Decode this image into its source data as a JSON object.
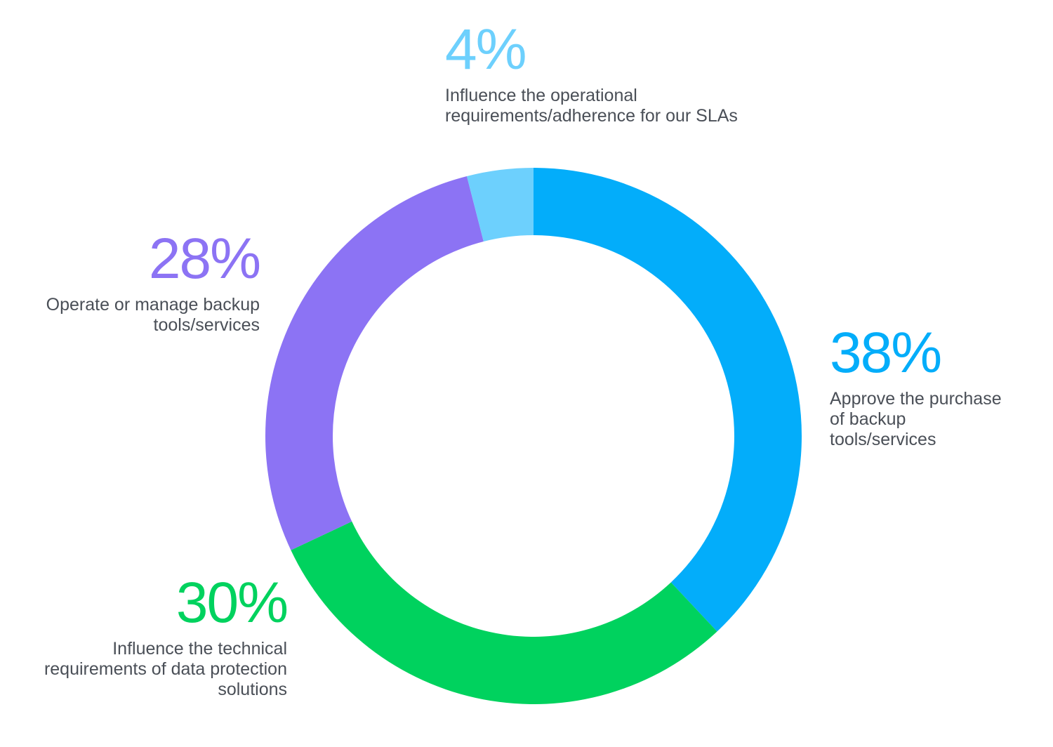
{
  "chart_data": {
    "type": "pie",
    "style": "donut",
    "title": "",
    "legend": "none",
    "unit": "%",
    "slices": [
      {
        "value": 38,
        "display": "38%",
        "label": "Approve the purchase\nof backup\ntools/services",
        "color": "#03adfa"
      },
      {
        "value": 30,
        "display": "30%",
        "label": "Influence the technical\nrequirements of data protection\nsolutions",
        "color": "#00d25e"
      },
      {
        "value": 28,
        "display": "28%",
        "label": "Operate or manage backup\ntools/services",
        "color": "#8c73f4"
      },
      {
        "value": 4,
        "display": "4%",
        "label": "Influence the operational\nrequirements/adherence for our SLAs",
        "color": "#6dd0fd"
      }
    ]
  }
}
